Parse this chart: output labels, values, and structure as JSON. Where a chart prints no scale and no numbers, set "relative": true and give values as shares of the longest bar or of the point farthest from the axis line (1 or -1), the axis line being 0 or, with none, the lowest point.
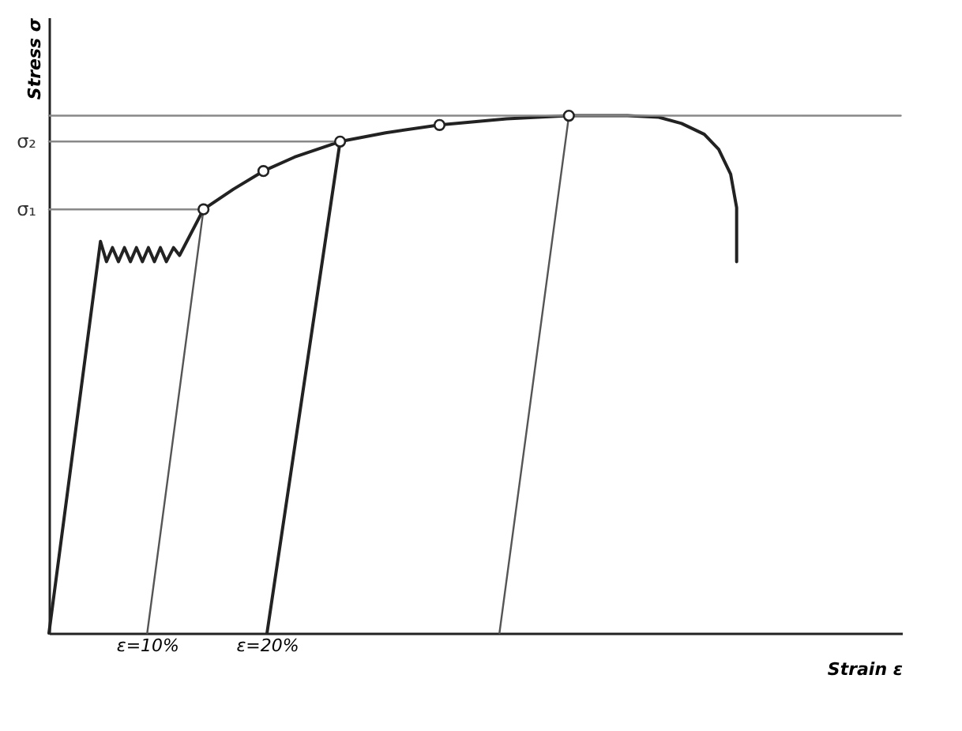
{
  "chart_data": {
    "type": "line",
    "relative": true,
    "xlabel": "Strain ε",
    "ylabel": "Stress σ",
    "xlim": [
      1.8,
      73
    ],
    "xticks": [
      {
        "value": 10,
        "label": "ε=10%"
      },
      {
        "value": 20,
        "label": "ε=20%"
      }
    ],
    "grid": false,
    "line_style": "solid",
    "series": [
      {
        "marker": "none",
        "color": "#222222",
        "x": [
          1.8,
          6.1,
          6.6,
          7.1,
          7.6,
          8.1,
          8.6,
          9.1,
          9.6,
          10.1,
          10.6,
          11.1,
          11.6,
          12.2,
          12.7,
          14.7,
          17.2,
          19.7,
          22.3,
          26.1,
          29.9,
          34.4,
          40,
          45.2,
          50.1,
          52.7,
          54.6,
          56.5,
          57.7,
          58.7,
          59.2,
          59.2
        ],
        "values": [
          0,
          0.757,
          0.718,
          0.745,
          0.718,
          0.745,
          0.718,
          0.745,
          0.718,
          0.745,
          0.718,
          0.745,
          0.718,
          0.745,
          0.73,
          0.819,
          0.858,
          0.893,
          0.92,
          0.95,
          0.967,
          0.982,
          0.994,
          1,
          1,
          0.997,
          0.985,
          0.964,
          0.935,
          0.887,
          0.822,
          0.718
        ]
      },
      {
        "marker": "none",
        "color": "#555555",
        "x": [
          14.7,
          10.0
        ],
        "values": [
          0.819,
          0
        ]
      },
      {
        "marker": "none",
        "color": "#222222",
        "x": [
          26.1,
          20.0
        ],
        "values": [
          0.95,
          0
        ]
      },
      {
        "marker": "none",
        "color": "#555555",
        "x": [
          45.2,
          39.4
        ],
        "values": [
          1,
          0
        ]
      },
      {
        "marker": "none",
        "color": "#888888",
        "x": [
          1.8,
          14.7
        ],
        "values": [
          0.819,
          0.819
        ]
      },
      {
        "marker": "none",
        "color": "#888888",
        "x": [
          1.8,
          26.1
        ],
        "values": [
          0.95,
          0.95
        ]
      },
      {
        "marker": "none",
        "color": "#888888",
        "x": [
          1.8,
          72.9
        ],
        "values": [
          1,
          1
        ]
      },
      {
        "type": "scatter",
        "marker": "circle",
        "color": "#222222",
        "x": [
          14.7,
          19.7,
          26.1,
          34.4,
          45.2
        ],
        "values": [
          0.819,
          0.893,
          0.95,
          0.982,
          1
        ]
      }
    ],
    "annotations": [
      {
        "text": "σ₁",
        "x": 1.8,
        "y": 0.819
      },
      {
        "text": "σ₂",
        "x": 1.8,
        "y": 0.95
      }
    ]
  }
}
